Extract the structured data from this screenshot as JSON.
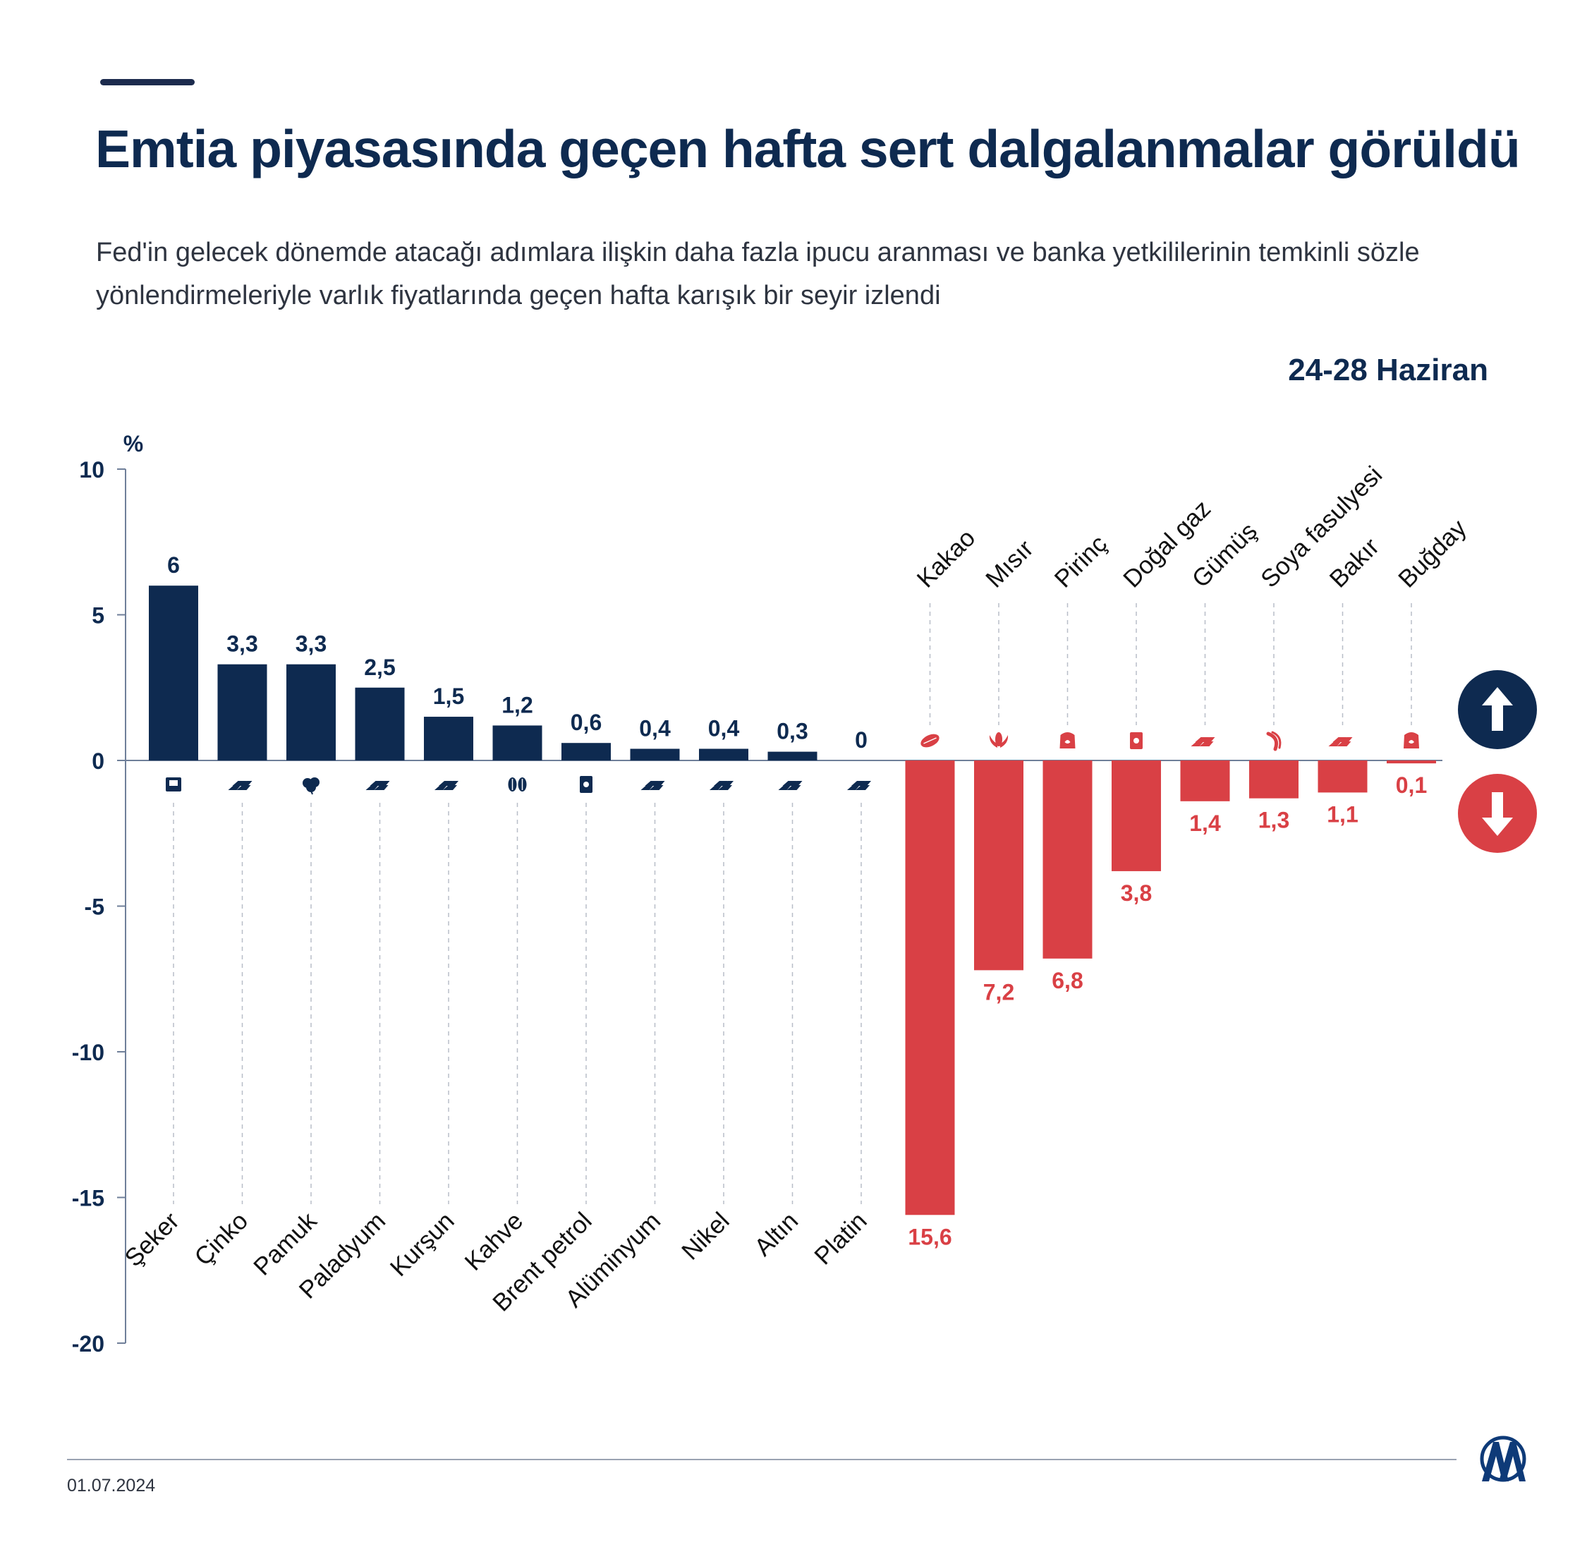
{
  "header": {
    "title": "Emtia piyasasında geçen hafta sert dalgalanmalar görüldü",
    "subtitle": "Fed'in gelecek dönemde atacağı adımlara ilişkin daha fazla ipucu aranması ve banka yetkililerinin temkinli sözle yönlendirmeleriyle varlık fiyatlarında geçen hafta karışık bir seyir izlendi",
    "date_range": "24-28 Haziran"
  },
  "footer": {
    "date": "01.07.2024"
  },
  "colors": {
    "positive": "#0e2a50",
    "negative": "#d94045",
    "text_dark": "#0e2a50",
    "axis": "#6f7f99"
  },
  "legend": {
    "up_icon": "arrow-up-icon",
    "down_icon": "arrow-down-icon"
  },
  "chart_data": {
    "type": "bar",
    "ylabel": "%",
    "ylim": [
      -20,
      10
    ],
    "yticks": [
      10,
      5,
      0,
      -5,
      -10,
      -15,
      -20
    ],
    "categories": [
      "Şeker",
      "Çinko",
      "Pamuk",
      "Paladyum",
      "Kurşun",
      "Kahve",
      "Brent petrol",
      "Alüminyum",
      "Nikel",
      "Altın",
      "Platin",
      "Kakao",
      "Mısır",
      "Pirinç",
      "Doğal gaz",
      "Gümüş",
      "Soya fasulyesi",
      "Bakır",
      "Buğday"
    ],
    "values": [
      6,
      3.3,
      3.3,
      2.5,
      1.5,
      1.2,
      0.6,
      0.4,
      0.4,
      0.3,
      0,
      -15.6,
      -7.2,
      -6.8,
      -3.8,
      -1.4,
      -1.3,
      -1.1,
      -0.1
    ],
    "value_labels": [
      "6",
      "3,3",
      "3,3",
      "2,5",
      "1,5",
      "1,2",
      "0,6",
      "0,4",
      "0,4",
      "0,3",
      "0",
      "15,6",
      "7,2",
      "6,8",
      "3,8",
      "1,4",
      "1,3",
      "1,1",
      "0,1"
    ],
    "icons": [
      "sugar-sack-icon",
      "metal-bars-icon",
      "cotton-icon",
      "metal-bars-icon",
      "metal-bars-icon",
      "coffee-beans-icon",
      "oil-barrel-icon",
      "metal-bars-icon",
      "metal-bars-icon",
      "metal-bars-icon",
      "metal-bars-icon",
      "cocoa-pod-icon",
      "corn-icon",
      "rice-sack-icon",
      "gas-barrel-icon",
      "metal-bars-icon",
      "soybean-icon",
      "metal-bars-icon",
      "wheat-sack-icon"
    ]
  }
}
